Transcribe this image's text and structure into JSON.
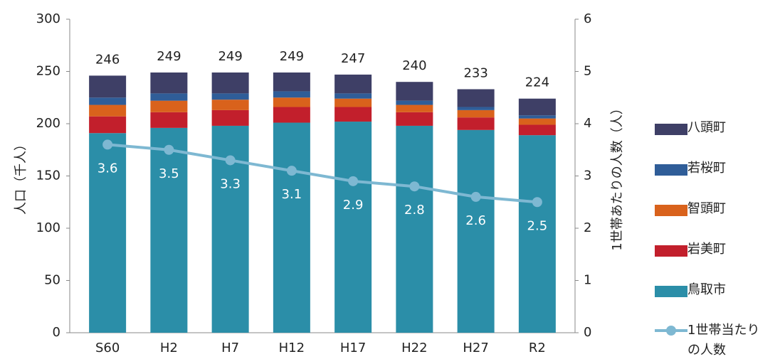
{
  "chart_data": {
    "type": "stacked_bar_line",
    "categories": [
      "S60",
      "H2",
      "H7",
      "H12",
      "H17",
      "H22",
      "H27",
      "R2"
    ],
    "ylabel": "人口（千人）",
    "y2label": "1世帯あたりの人数（人）",
    "ylim": [
      0,
      300
    ],
    "yticks": [
      0,
      50,
      100,
      150,
      200,
      250,
      300
    ],
    "y2lim": [
      0,
      6
    ],
    "y2ticks": [
      0,
      1,
      2,
      3,
      4,
      5,
      6
    ],
    "totals": [
      246,
      249,
      249,
      249,
      247,
      240,
      233,
      224
    ],
    "series": [
      {
        "name": "鳥取市",
        "color": "#2b8ea8",
        "values": [
          191,
          196,
          198,
          201,
          202,
          198,
          194,
          189
        ]
      },
      {
        "name": "岩美町",
        "color": "#c21f2c",
        "values": [
          16,
          15,
          15,
          15,
          14,
          13,
          12,
          10
        ]
      },
      {
        "name": "智頭町",
        "color": "#d9621c",
        "values": [
          11,
          11,
          10,
          9,
          8,
          7,
          7,
          6
        ]
      },
      {
        "name": "若桜町",
        "color": "#2f5d98",
        "values": [
          7,
          7,
          6,
          6,
          5,
          4,
          3,
          3
        ]
      },
      {
        "name": "八頭町",
        "color": "#3e3f66",
        "values": [
          21,
          20,
          20,
          18,
          18,
          18,
          17,
          16
        ]
      },
      {
        "name": "1世帯当たりの人数",
        "color": "#7eb8d2",
        "axis": "y2",
        "type": "line",
        "values": [
          3.6,
          3.5,
          3.3,
          3.1,
          2.9,
          2.8,
          2.6,
          2.5
        ]
      }
    ]
  }
}
